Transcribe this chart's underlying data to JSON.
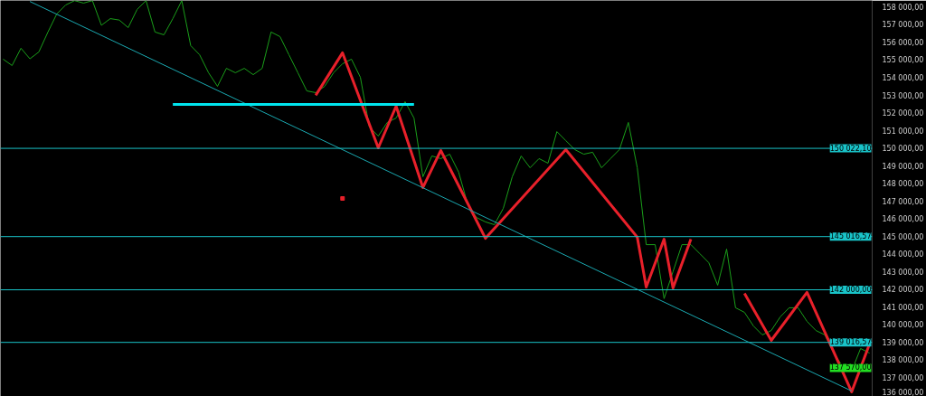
{
  "chart_data": {
    "type": "line",
    "categories": [
      null,
      null,
      null,
      null,
      null,
      null,
      null,
      null,
      null,
      null,
      null,
      null,
      null,
      null,
      null,
      null,
      null,
      null,
      null,
      null,
      null,
      null,
      null,
      null,
      null,
      null,
      null,
      null,
      null,
      null,
      null,
      null,
      null,
      null,
      null,
      null,
      null,
      null,
      null,
      null,
      null,
      null,
      null,
      null,
      null,
      null,
      null,
      null,
      null,
      null,
      null,
      null,
      null,
      null,
      null,
      null,
      null,
      null,
      null,
      null,
      null,
      null,
      null,
      null,
      null,
      null,
      null,
      null,
      null,
      null,
      null,
      null,
      null,
      null,
      null,
      null,
      null,
      null,
      null,
      null,
      null,
      null,
      null,
      null,
      null,
      null,
      null,
      null,
      null,
      null,
      null,
      null,
      null,
      null,
      null,
      null,
      null,
      null
    ],
    "ylim": [
      135950,
      158410
    ],
    "yticks": [
      {
        "value": 136000,
        "label": "136 000,00"
      },
      {
        "value": 137000,
        "label": "137 000,00"
      },
      {
        "value": 138000,
        "label": "138 000,00"
      },
      {
        "value": 139000,
        "label": "139 000,00"
      },
      {
        "value": 140000,
        "label": "140 000,00"
      },
      {
        "value": 141000,
        "label": "141 000,00"
      },
      {
        "value": 142000,
        "label": "142 000,00"
      },
      {
        "value": 143000,
        "label": "143 000,00"
      },
      {
        "value": 144000,
        "label": "144 000,00"
      },
      {
        "value": 145000,
        "label": "145 000,00"
      },
      {
        "value": 146000,
        "label": "146 000,00"
      },
      {
        "value": 147000,
        "label": "147 000,00"
      },
      {
        "value": 148000,
        "label": "148 000,00"
      },
      {
        "value": 149000,
        "label": "149 000,00"
      },
      {
        "value": 150000,
        "label": "150 000,00"
      },
      {
        "value": 151000,
        "label": "151 000,00"
      },
      {
        "value": 152000,
        "label": "152 000,00"
      },
      {
        "value": 153000,
        "label": "153 000,00"
      },
      {
        "value": 154000,
        "label": "154 000,00"
      },
      {
        "value": 155000,
        "label": "155 000,00"
      },
      {
        "value": 156000,
        "label": "156 000,00"
      },
      {
        "value": 157000,
        "label": "157 000,00"
      },
      {
        "value": 158000,
        "label": "158 000,00"
      }
    ],
    "tick_labels": "y",
    "grid": false,
    "series": [
      {
        "color": "#1a9e1a",
        "values": [
          155080,
          154720,
          155700,
          155100,
          155490,
          156600,
          157640,
          158150,
          158400,
          158260,
          158400,
          157000,
          157380,
          157300,
          156870,
          157900,
          158400,
          156620,
          156460,
          157380,
          158400,
          155850,
          155330,
          154310,
          153540,
          154560,
          154310,
          154560,
          154200,
          154560,
          156620,
          156360,
          155330,
          154310,
          153280,
          153180,
          153540,
          154310,
          154820,
          155080,
          154050,
          151230,
          150720,
          151490,
          151740,
          152670,
          151740,
          148410,
          149590,
          149440,
          149690,
          148670,
          146870,
          146100,
          145850,
          145690,
          146620,
          148410,
          149590,
          148920,
          149440,
          149180,
          150970,
          150460,
          149950,
          149690,
          149800,
          148920,
          149440,
          149950,
          151490,
          148920,
          144560,
          144560,
          141500,
          143030,
          144560,
          144560,
          144050,
          143540,
          142260,
          144310,
          140980,
          140720,
          139950,
          139440,
          139690,
          140460,
          140980,
          140980,
          140210,
          139690,
          139440,
          138410,
          137640,
          137390,
          138670,
          138410
        ]
      },
      {
        "color": "#e8202a",
        "values": [
          null,
          null,
          null,
          null,
          null,
          null,
          null,
          null,
          null,
          null,
          null,
          null,
          null,
          null,
          null,
          null,
          null,
          null,
          null,
          null,
          null,
          null,
          null,
          null,
          null,
          null,
          null,
          null,
          null,
          null,
          null,
          null,
          null,
          null,
          null,
          153030,
          null,
          null,
          155440,
          null,
          null,
          null,
          150050,
          null,
          152410,
          null,
          null,
          147800,
          null,
          149900,
          null,
          null,
          null,
          null,
          144920,
          null,
          null,
          null,
          null,
          null,
          null,
          null,
          null,
          149950,
          null,
          null,
          null,
          null,
          null,
          null,
          null,
          144980,
          142150,
          null,
          144870,
          142100,
          null,
          144870,
          null,
          null,
          null,
          null,
          null,
          null,
          null,
          null,
          null,
          null,
          null,
          null,
          null,
          null,
          null,
          null,
          null,
          null,
          null,
          null
        ]
      },
      {
        "color": "#e8202a",
        "values": [
          null,
          null,
          null,
          null,
          null,
          null,
          null,
          null,
          null,
          null,
          null,
          null,
          null,
          null,
          null,
          null,
          null,
          null,
          null,
          null,
          null,
          null,
          null,
          null,
          null,
          null,
          null,
          null,
          null,
          null,
          null,
          null,
          null,
          null,
          null,
          null,
          null,
          null,
          null,
          null,
          null,
          null,
          null,
          null,
          null,
          null,
          null,
          null,
          null,
          null,
          null,
          null,
          null,
          null,
          null,
          null,
          null,
          null,
          null,
          null,
          null,
          null,
          null,
          null,
          null,
          null,
          null,
          null,
          null,
          null,
          null,
          null,
          null,
          null,
          null,
          null,
          null,
          null,
          null,
          null,
          null,
          null,
          null,
          141800,
          null,
          null,
          139130,
          null,
          null,
          null,
          141850,
          null,
          null,
          null,
          null,
          136210,
          null,
          138920
        ]
      },
      {
        "color": "#1aa8b0",
        "values": [
          null,
          null,
          null,
          158350,
          null,
          null,
          null,
          null,
          null,
          null,
          null,
          null,
          null,
          null,
          null,
          null,
          null,
          null,
          null,
          null,
          null,
          null,
          null,
          null,
          null,
          null,
          null,
          null,
          null,
          null,
          null,
          null,
          null,
          null,
          null,
          null,
          null,
          null,
          null,
          null,
          null,
          null,
          null,
          null,
          null,
          null,
          null,
          null,
          null,
          null,
          null,
          null,
          null,
          null,
          null,
          null,
          null,
          null,
          null,
          null,
          null,
          null,
          null,
          null,
          null,
          null,
          null,
          null,
          null,
          null,
          null,
          null,
          null,
          null,
          null,
          null,
          null,
          null,
          null,
          null,
          null,
          null,
          null,
          null,
          null,
          null,
          null,
          null,
          null,
          null,
          null,
          null,
          null,
          null,
          null,
          136260,
          null,
          null
        ]
      },
      {
        "color": "#00e5ee",
        "values": [
          null,
          null,
          null,
          null,
          null,
          null,
          null,
          null,
          null,
          null,
          null,
          null,
          null,
          null,
          null,
          null,
          null,
          null,
          null,
          152510,
          null,
          null,
          null,
          null,
          null,
          null,
          null,
          null,
          null,
          null,
          null,
          null,
          null,
          null,
          null,
          null,
          null,
          null,
          null,
          null,
          null,
          null,
          null,
          null,
          null,
          null,
          152510,
          null,
          null,
          null,
          null,
          null,
          null,
          null,
          null,
          null,
          null,
          null,
          null,
          null,
          null,
          null,
          null,
          null,
          null,
          null,
          null,
          null,
          null,
          null,
          null,
          null,
          null,
          null,
          null,
          null,
          null,
          null,
          null,
          null,
          null,
          null,
          null,
          null,
          null,
          null,
          null,
          null,
          null,
          null,
          null,
          null,
          null,
          null,
          null,
          null,
          null,
          null
        ]
      },
      {
        "type": "scatter",
        "marker": "square",
        "color": "#e8202a",
        "values": [
          null,
          null,
          null,
          null,
          null,
          null,
          null,
          null,
          null,
          null,
          null,
          null,
          null,
          null,
          null,
          null,
          null,
          null,
          null,
          null,
          null,
          null,
          null,
          null,
          null,
          null,
          null,
          null,
          null,
          null,
          null,
          null,
          null,
          null,
          null,
          null,
          null,
          null,
          147180,
          null,
          null,
          null,
          null,
          null,
          null,
          null,
          null,
          null,
          null,
          null,
          null,
          null,
          null,
          null,
          null,
          null,
          null,
          null,
          null,
          null,
          null,
          null,
          null,
          null,
          null,
          null,
          null,
          null,
          null,
          null,
          null,
          null,
          null,
          null,
          null,
          null,
          null,
          null,
          null,
          null,
          null,
          null,
          null,
          null,
          null,
          null,
          null,
          null,
          null,
          null,
          null,
          null,
          null,
          null,
          null,
          null,
          null,
          null
        ]
      }
    ],
    "ref_lines": [
      {
        "axis": "y",
        "value": 150022.1,
        "label": "150 022,10",
        "color": "#19c3c8"
      },
      {
        "axis": "y",
        "value": 145016.57,
        "label": "145 016,57",
        "color": "#19c3c8"
      },
      {
        "axis": "y",
        "value": 142000,
        "label": "142 000,00",
        "color": "#19c3c8"
      },
      {
        "axis": "y",
        "value": 139016.57,
        "label": "139 016,57",
        "color": "#19c3c8"
      }
    ],
    "annotations": [
      {
        "text": "137 570,00",
        "y": 137570
      }
    ]
  }
}
